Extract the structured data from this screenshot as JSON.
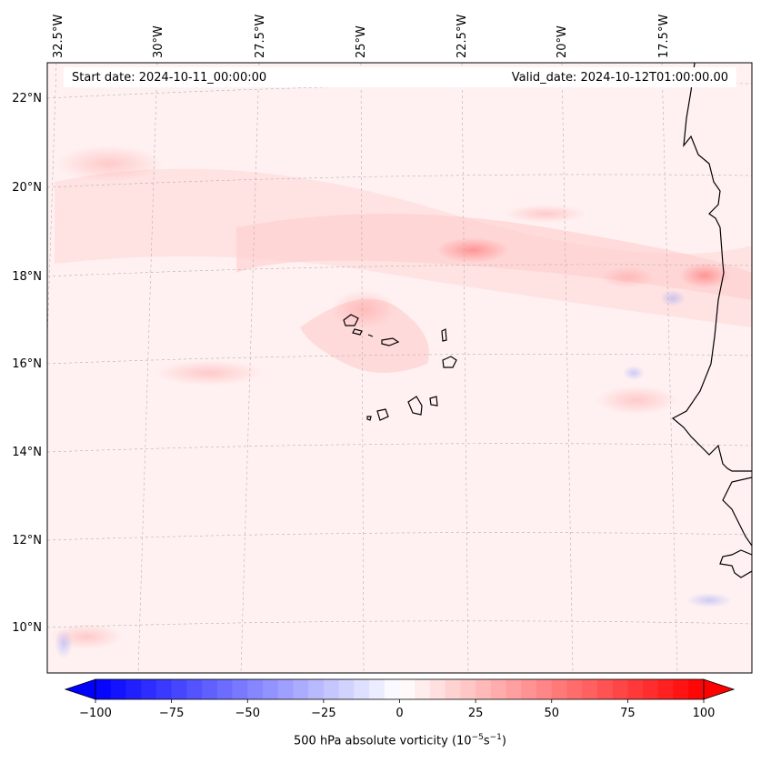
{
  "header": {
    "start_date": "Start date: 2024-10-11_00:00:00",
    "valid_date": "Valid_date: 2024-10-12T01:00:00.00"
  },
  "map": {
    "lon_labels": [
      "32.5°W",
      "30°W",
      "27.5°W",
      "25°W",
      "22.5°W",
      "20°W",
      "17.5°W"
    ],
    "lat_labels": [
      "22°N",
      "20°N",
      "18°N",
      "16°N",
      "14°N",
      "12°N",
      "10°N"
    ],
    "colormap": "bwr",
    "land_color": "#ffffff",
    "coast_color": "#000000"
  },
  "colorbar": {
    "min": -100,
    "max": 100,
    "ticks": [
      "−100",
      "−75",
      "−50",
      "−25",
      "0",
      "25",
      "50",
      "75",
      "100"
    ],
    "label_prefix": "500 hPa absolute vorticity (10",
    "label_exp1": "−5",
    "label_mid": "s",
    "label_exp2": "−1",
    "label_suffix": ")"
  },
  "colors": {
    "negative": "#0000ff",
    "zero": "#ffffff",
    "positive": "#ff0000"
  }
}
